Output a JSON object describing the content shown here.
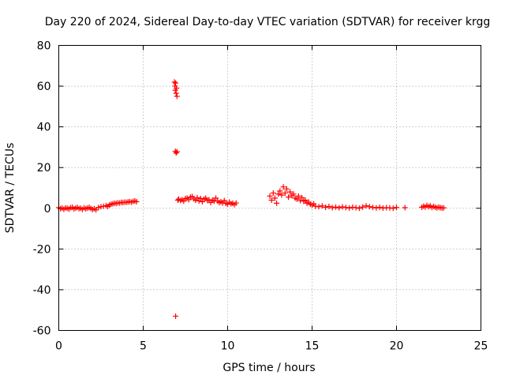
{
  "chart_data": {
    "type": "scatter",
    "title": "Day 220 of 2024, Sidereal Day-to-day VTEC variation (SDTVAR) for receiver krgg",
    "xlabel": "GPS time / hours",
    "ylabel": "SDTVAR / TECUs",
    "xlim": [
      0,
      25
    ],
    "ylim": [
      -60,
      80
    ],
    "xticks": [
      0,
      5,
      10,
      15,
      20,
      25
    ],
    "yticks": [
      -60,
      -40,
      -20,
      0,
      20,
      40,
      60,
      80
    ],
    "grid": true,
    "marker": "+",
    "color": "#ff0000",
    "series": [
      {
        "name": "SDTVAR",
        "x": [
          0.0,
          0.1,
          0.2,
          0.3,
          0.4,
          0.5,
          0.6,
          0.7,
          0.8,
          0.9,
          1.0,
          1.1,
          1.2,
          1.3,
          1.4,
          1.5,
          1.6,
          1.7,
          1.8,
          1.9,
          2.0,
          2.1,
          2.2,
          2.35,
          2.5,
          2.65,
          2.8,
          2.9,
          3.0,
          3.1,
          3.2,
          3.3,
          3.4,
          3.5,
          3.6,
          3.7,
          3.8,
          3.9,
          4.0,
          4.1,
          4.2,
          4.3,
          4.4,
          4.5,
          4.6,
          6.85,
          6.88,
          6.9,
          6.92,
          6.95,
          6.97,
          7.0,
          6.9,
          6.95,
          7.0,
          6.92,
          7.05,
          7.1,
          7.2,
          7.3,
          7.4,
          7.5,
          7.6,
          7.7,
          7.8,
          7.9,
          8.0,
          8.1,
          8.2,
          8.3,
          8.4,
          8.5,
          8.6,
          8.7,
          8.8,
          8.9,
          9.0,
          9.1,
          9.2,
          9.3,
          9.4,
          9.5,
          9.6,
          9.7,
          9.8,
          9.9,
          10.0,
          10.1,
          10.2,
          10.3,
          10.4,
          10.5,
          12.5,
          12.6,
          12.7,
          12.8,
          12.9,
          13.0,
          13.1,
          13.2,
          13.3,
          13.4,
          13.5,
          13.6,
          13.7,
          13.8,
          13.9,
          14.0,
          14.1,
          14.2,
          14.3,
          14.4,
          14.5,
          14.6,
          14.7,
          14.8,
          14.9,
          15.0,
          15.1,
          15.2,
          15.4,
          15.6,
          15.8,
          16.0,
          16.2,
          16.4,
          16.6,
          16.8,
          17.0,
          17.2,
          17.4,
          17.6,
          17.8,
          18.0,
          18.2,
          18.4,
          18.6,
          18.8,
          19.0,
          19.2,
          19.4,
          19.6,
          19.8,
          20.0,
          20.5,
          21.5,
          21.6,
          21.7,
          21.8,
          21.9,
          22.0,
          22.1,
          22.2,
          22.3,
          22.4,
          22.5,
          22.6,
          22.7,
          22.8
        ],
        "y": [
          0.3,
          -0.2,
          0.1,
          -0.5,
          0.2,
          0.0,
          -0.4,
          0.3,
          0.5,
          -0.3,
          0.1,
          0.4,
          -0.2,
          0.0,
          -0.5,
          0.2,
          -0.3,
          0.1,
          0.4,
          -0.1,
          -0.6,
          -0.2,
          -0.8,
          0.4,
          0.8,
          1.0,
          1.3,
          0.9,
          1.6,
          2.0,
          2.2,
          2.5,
          2.4,
          2.7,
          2.6,
          2.9,
          2.8,
          3.0,
          2.9,
          3.1,
          3.3,
          3.0,
          3.4,
          3.6,
          3.2,
          62.0,
          60.0,
          58.0,
          61.5,
          56.5,
          59.0,
          55.0,
          28.0,
          27.2,
          27.8,
          -53.0,
          4.0,
          4.5,
          3.8,
          4.2,
          3.5,
          4.8,
          5.0,
          4.2,
          5.5,
          5.8,
          4.6,
          4.0,
          5.2,
          3.6,
          4.8,
          3.2,
          4.5,
          5.0,
          3.8,
          4.2,
          2.8,
          4.0,
          3.5,
          5.0,
          3.6,
          2.8,
          3.2,
          2.6,
          3.8,
          2.4,
          2.0,
          3.0,
          2.2,
          2.5,
          1.8,
          2.6,
          6.0,
          4.0,
          7.5,
          5.0,
          2.5,
          7.0,
          8.5,
          6.5,
          10.5,
          7.5,
          9.5,
          5.5,
          8.0,
          6.2,
          7.0,
          5.0,
          4.5,
          6.0,
          3.8,
          5.2,
          3.5,
          4.0,
          2.5,
          3.0,
          2.0,
          1.5,
          2.2,
          1.0,
          0.8,
          1.2,
          0.5,
          0.9,
          0.3,
          0.6,
          0.2,
          0.7,
          0.4,
          0.1,
          0.5,
          0.3,
          0.0,
          0.6,
          1.2,
          0.8,
          0.4,
          0.2,
          0.5,
          0.1,
          0.3,
          0.2,
          0.0,
          0.4,
          0.3,
          0.5,
          1.0,
          0.6,
          1.4,
          0.8,
          1.2,
          0.4,
          0.9,
          0.5,
          0.2,
          0.6,
          0.3,
          0.1,
          0.2
        ]
      }
    ]
  }
}
